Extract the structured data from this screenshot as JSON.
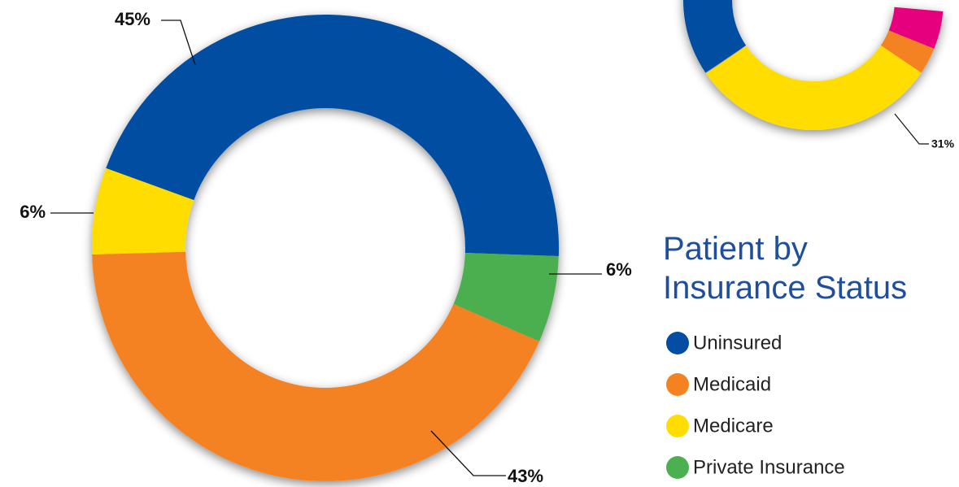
{
  "chart_data": [
    {
      "type": "donut",
      "title": "Patient by Insurance Status",
      "categories": [
        "Uninsured",
        "Medicaid",
        "Medicare",
        "Private Insurance"
      ],
      "values": [
        45,
        43,
        6,
        6
      ],
      "value_labels": [
        "45%",
        "43%",
        "6%",
        "6%"
      ],
      "colors": [
        "#034ea2",
        "#f58220",
        "#ffdd00",
        "#4caf50"
      ],
      "legend": "right"
    },
    {
      "type": "donut",
      "values": [
        31
      ],
      "value_labels": [
        "31%"
      ],
      "colors": [
        "#ffdd00"
      ]
    }
  ]
}
